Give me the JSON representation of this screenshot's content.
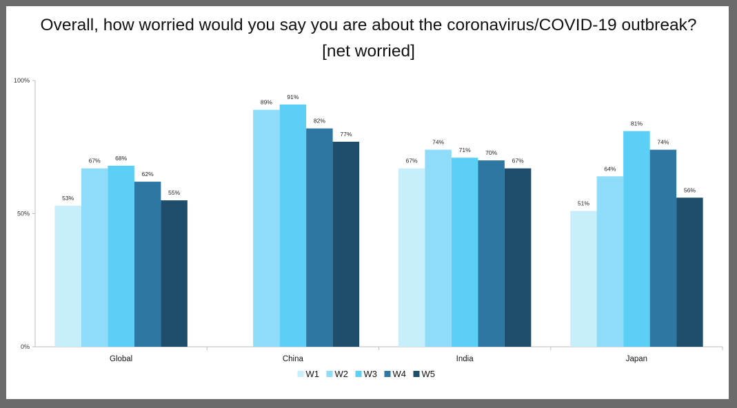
{
  "chart_data": {
    "type": "bar",
    "title": "Overall, how worried would you say you are about the coronavirus/COVID-19 outbreak?",
    "subtitle": "[net worried]",
    "categories": [
      "Global",
      "China",
      "India",
      "Japan"
    ],
    "series": [
      {
        "name": "W1",
        "color": "#c9eefb",
        "values": [
          53,
          null,
          67,
          51
        ]
      },
      {
        "name": "W2",
        "color": "#8fdcf8",
        "values": [
          67,
          89,
          74,
          64
        ]
      },
      {
        "name": "W3",
        "color": "#5ccff6",
        "values": [
          68,
          91,
          71,
          81
        ]
      },
      {
        "name": "W4",
        "color": "#2f77a3",
        "values": [
          62,
          82,
          70,
          74
        ]
      },
      {
        "name": "W5",
        "color": "#1e4e6b",
        "values": [
          55,
          77,
          67,
          56
        ]
      }
    ],
    "ylim": [
      0,
      100
    ],
    "yticks": [
      "0%",
      "50%",
      "100%"
    ],
    "value_suffix": "%",
    "legend_position": "bottom",
    "grid": false
  }
}
